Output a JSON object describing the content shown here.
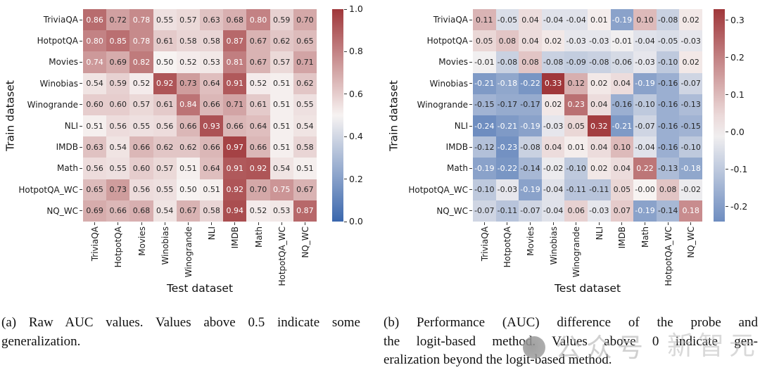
{
  "figure": {
    "xlabel": "Test dataset",
    "ylabel": "Train dataset"
  },
  "chart_data": [
    {
      "type": "heatmap",
      "panel": "a",
      "xlabel": "Test dataset",
      "ylabel": "Train dataset",
      "categories": [
        "TriviaQA",
        "HotpotQA",
        "Movies",
        "Winobias",
        "Winogrande",
        "NLI",
        "IMDB",
        "Math",
        "HotpotQA_WC",
        "NQ_WC"
      ],
      "row_labels": [
        "TriviaQA",
        "HotpotQA",
        "Movies",
        "Winobias",
        "Winogrande",
        "NLI",
        "IMDB",
        "Math",
        "HotpotQA_WC",
        "NQ_WC"
      ],
      "rows": [
        [
          "0.86",
          "0.72",
          "0.78",
          "0.55",
          "0.57",
          "0.63",
          "0.68",
          "0.80",
          "0.59",
          "0.70"
        ],
        [
          "0.80",
          "0.85",
          "0.78",
          "0.61",
          "0.58",
          "0.58",
          "0.87",
          "0.67",
          "0.62",
          "0.65"
        ],
        [
          "0.74",
          "0.69",
          "0.82",
          "0.50",
          "0.52",
          "0.53",
          "0.81",
          "0.67",
          "0.57",
          "0.71"
        ],
        [
          "0.54",
          "0.59",
          "0.52",
          "0.92",
          "0.73",
          "0.64",
          "0.91",
          "0.52",
          "0.51",
          "0.62"
        ],
        [
          "0.60",
          "0.60",
          "0.57",
          "0.61",
          "0.84",
          "0.66",
          "0.71",
          "0.61",
          "0.51",
          "0.55"
        ],
        [
          "0.51",
          "0.56",
          "0.55",
          "0.56",
          "0.66",
          "0.93",
          "0.66",
          "0.64",
          "0.51",
          "0.54"
        ],
        [
          "0.63",
          "0.54",
          "0.66",
          "0.62",
          "0.62",
          "0.66",
          "0.97",
          "0.66",
          "0.51",
          "0.58"
        ],
        [
          "0.56",
          "0.55",
          "0.60",
          "0.57",
          "0.51",
          "0.64",
          "0.91",
          "0.92",
          "0.54",
          "0.51"
        ],
        [
          "0.65",
          "0.73",
          "0.56",
          "0.55",
          "0.50",
          "0.51",
          "0.92",
          "0.70",
          "0.75",
          "0.67"
        ],
        [
          "0.69",
          "0.66",
          "0.68",
          "0.54",
          "0.67",
          "0.58",
          "0.94",
          "0.52",
          "0.53",
          "0.87"
        ]
      ],
      "vmin": 0.0,
      "vmax": 1.0,
      "center": 0.5,
      "colorbar_ticks": [
        "1.0",
        "0.8",
        "0.6",
        "0.4",
        "0.2",
        "0.0"
      ],
      "colormap": "vlag (blue-white-red diverging)",
      "legend_position": "right-colorbar",
      "grid": false
    },
    {
      "type": "heatmap",
      "panel": "b",
      "xlabel": "Test dataset",
      "ylabel": "Train dataset",
      "categories": [
        "TriviaQA",
        "HotpotQA",
        "Movies",
        "Winobias",
        "Winogrande",
        "NLI",
        "IMDB",
        "Math",
        "HotpotQA_WC",
        "NQ_WC"
      ],
      "row_labels": [
        "TriviaQA",
        "HotpotQA",
        "Movies",
        "Winobias",
        "Winogrande",
        "NLI",
        "IMDB",
        "Math",
        "HotpotQA_WC",
        "NQ_WC"
      ],
      "rows": [
        [
          "0.11",
          "-0.05",
          "0.04",
          "-0.04",
          "-0.04",
          "0.01",
          "-0.19",
          "0.10",
          "-0.08",
          "0.02"
        ],
        [
          "0.05",
          "0.08",
          "0.04",
          "0.02",
          "-0.03",
          "-0.03",
          "-0.01",
          "-0.04",
          "-0.05",
          "-0.03"
        ],
        [
          "-0.01",
          "-0.08",
          "0.08",
          "-0.08",
          "-0.09",
          "-0.08",
          "-0.06",
          "-0.03",
          "-0.10",
          "0.02"
        ],
        [
          "-0.21",
          "-0.18",
          "-0.22",
          "0.33",
          "0.12",
          "0.02",
          "0.04",
          "-0.19",
          "-0.16",
          "-0.07"
        ],
        [
          "-0.15",
          "-0.17",
          "-0.17",
          "0.02",
          "0.23",
          "0.04",
          "-0.16",
          "-0.10",
          "-0.16",
          "-0.13"
        ],
        [
          "-0.24",
          "-0.21",
          "-0.19",
          "-0.03",
          "0.05",
          "0.32",
          "-0.21",
          "-0.07",
          "-0.16",
          "-0.15"
        ],
        [
          "-0.12",
          "-0.23",
          "-0.08",
          "0.04",
          "0.01",
          "0.04",
          "0.10",
          "-0.04",
          "-0.16",
          "-0.10"
        ],
        [
          "-0.19",
          "-0.22",
          "-0.14",
          "-0.02",
          "-0.10",
          "0.02",
          "0.04",
          "0.22",
          "-0.13",
          "-0.18"
        ],
        [
          "-0.10",
          "-0.03",
          "-0.19",
          "-0.04",
          "-0.11",
          "-0.11",
          "0.05",
          "-0.00",
          "0.08",
          "-0.02"
        ],
        [
          "-0.07",
          "-0.11",
          "-0.07",
          "-0.04",
          "0.06",
          "-0.03",
          "0.07",
          "-0.19",
          "-0.14",
          "0.18"
        ]
      ],
      "vmin": -0.24,
      "vmax": 0.33,
      "center": 0.0,
      "colorbar_ticks": [
        "0.3",
        "0.2",
        "0.1",
        "0.0",
        "-0.1",
        "-0.2"
      ],
      "colormap": "vlag (blue-white-red diverging)",
      "legend_position": "right-colorbar",
      "grid": false
    }
  ],
  "captions": {
    "a": {
      "text": "(a) Raw AUC values. Values above 0.5 indicate some generalization.",
      "lines": [
        "(a) Raw AUC values. Values above 0.5 indicate some",
        "generalization."
      ]
    },
    "b": {
      "text": "(b) Performance (AUC) difference of the probe and the logit-based method. Values above 0 indicate generalization beyond the logit-based method.",
      "lines": [
        "(b) Performance (AUC) difference of the probe and",
        "the logit-based method. Values above 0 indicate gen-",
        "eralization beyond the logit-based method."
      ]
    }
  },
  "watermark": {
    "logo": "gray-circle-logo",
    "text1": "公众号",
    "text2": "新智元"
  },
  "colors": {
    "cmap_red_end": "#a03739",
    "cmap_white_mid": "#f7f3f2",
    "cmap_blue_end": "#3a67ad",
    "annotation_dark": "#262626",
    "annotation_light": "#ffffff",
    "background": "#ffffff"
  }
}
